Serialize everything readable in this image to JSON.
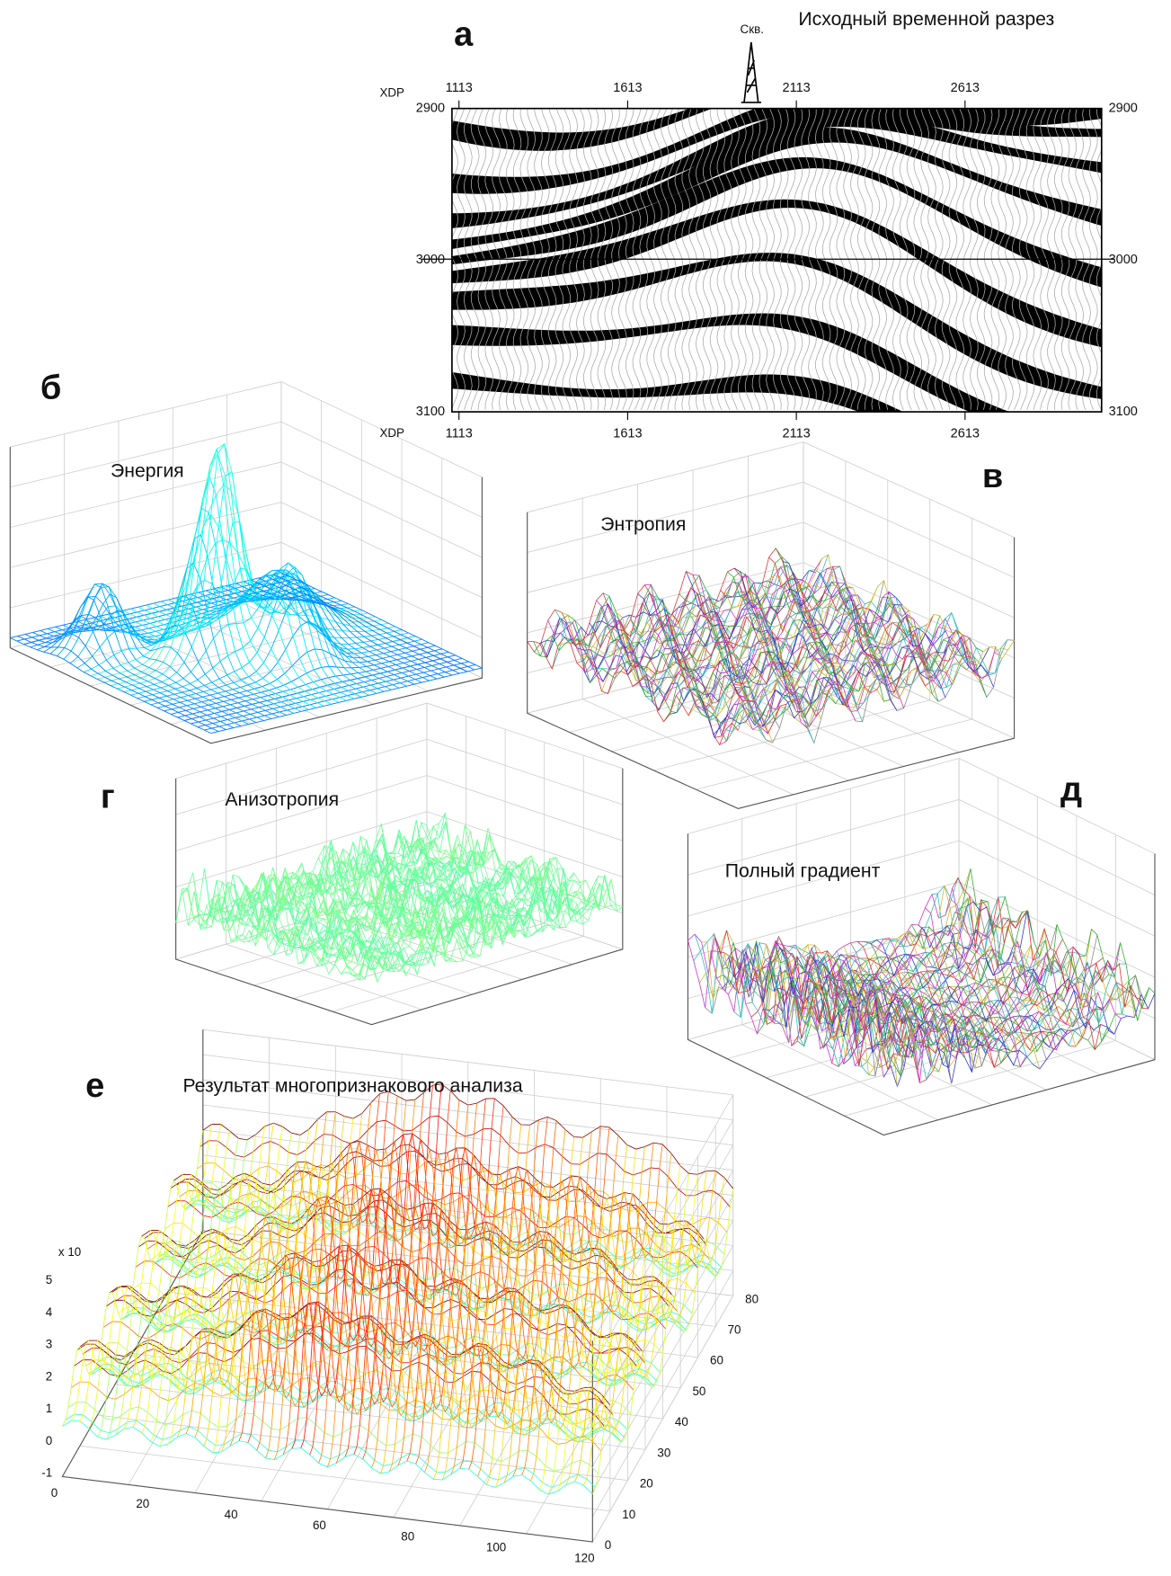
{
  "panels": {
    "a": {
      "letter": "а",
      "title": "Исходный временной разрез",
      "well": "Скв.",
      "axis_label_top": "XDP",
      "axis_label_bottom": "XDP",
      "x_ticks": [
        "1113",
        "1613",
        "2113",
        "2613"
      ],
      "y_ticks": [
        "2900",
        "3000",
        "3100"
      ]
    },
    "b": {
      "letter": "б",
      "title": "Энергия"
    },
    "v": {
      "letter": "в",
      "title": "Энтропия"
    },
    "g": {
      "letter": "г",
      "title": "Анизотропия"
    },
    "d": {
      "letter": "д",
      "title": "Полный градиент"
    },
    "e": {
      "letter": "е",
      "title": "Результат многопризнакового анализа",
      "z_exponent": "x 10",
      "z_ticks": [
        "5",
        "4",
        "3",
        "2",
        "1",
        "0",
        "-1"
      ],
      "x_ticks": [
        "0",
        "20",
        "40",
        "60",
        "80",
        "100",
        "120"
      ],
      "y_ticks": [
        "0",
        "10",
        "20",
        "30",
        "40",
        "50",
        "60",
        "70",
        "80"
      ]
    }
  }
}
